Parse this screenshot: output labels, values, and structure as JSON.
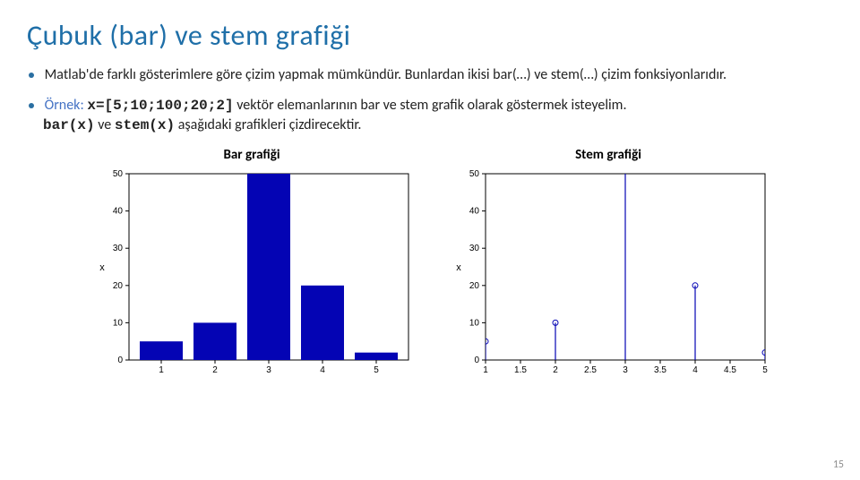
{
  "title": "Çubuk (bar) ve stem grafiği",
  "para1": "Matlab'de farklı gösterimlere göre çizim yapmak mümkündür. Bunlardan ikisi bar(…) ve stem(…) çizim fonksiyonlarıdır.",
  "example_prefix": "Örnek:",
  "example_code": "x=[5;10;100;20;2]",
  "example_rest1": " vektör elemanlarının bar ve stem grafik olarak göstermek isteyelim.",
  "example_code2a": "bar(x)",
  "example_mid": " ve ",
  "example_code2b": "stem(x)",
  "example_rest2": " aşağıdaki grafikleri çizdirecektir.",
  "bar_chart": {
    "title": "Bar grafiği",
    "type": "bar",
    "x_values": [
      1,
      2,
      3,
      4,
      5
    ],
    "y_values": [
      5,
      10,
      100,
      20,
      2
    ],
    "bar_color": "#0404b4",
    "axis_color": "#000000",
    "xlim": [
      0.4,
      5.6
    ],
    "ylim": [
      0,
      50
    ],
    "xticks": [
      1,
      2,
      3,
      4,
      5
    ],
    "yticks": [
      0,
      10,
      20,
      30,
      40,
      50
    ],
    "ylabel": "x",
    "bar_width": 0.8,
    "tick_fontsize": 10,
    "background": "#ffffff"
  },
  "stem_chart": {
    "title": "Stem grafiği",
    "type": "stem",
    "x_values": [
      1,
      2,
      3,
      4,
      5
    ],
    "y_values": [
      5,
      10,
      100,
      20,
      2
    ],
    "stem_color": "#0404b4",
    "marker_edge": "#0404b4",
    "marker_fill": "none",
    "marker_radius": 3,
    "axis_color": "#000000",
    "xlim": [
      1,
      5
    ],
    "ylim": [
      0,
      50
    ],
    "xticks": [
      1,
      1.5,
      2,
      2.5,
      3,
      3.5,
      4,
      4.5,
      5
    ],
    "yticks": [
      0,
      10,
      20,
      30,
      40,
      50
    ],
    "ylabel": "x",
    "tick_fontsize": 10,
    "background": "#ffffff"
  },
  "page_number": "15"
}
